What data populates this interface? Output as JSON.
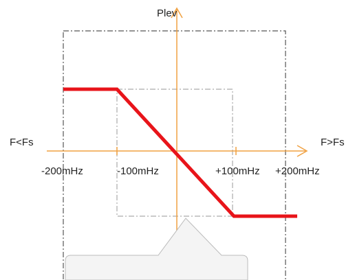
{
  "axes": {
    "y_label": "Plev",
    "left_label": "F<Fs",
    "right_label": "F>Fs"
  },
  "ticks": [
    "-200mHz",
    "-100mHz",
    "+100mHz",
    "+200mHz"
  ]
}
